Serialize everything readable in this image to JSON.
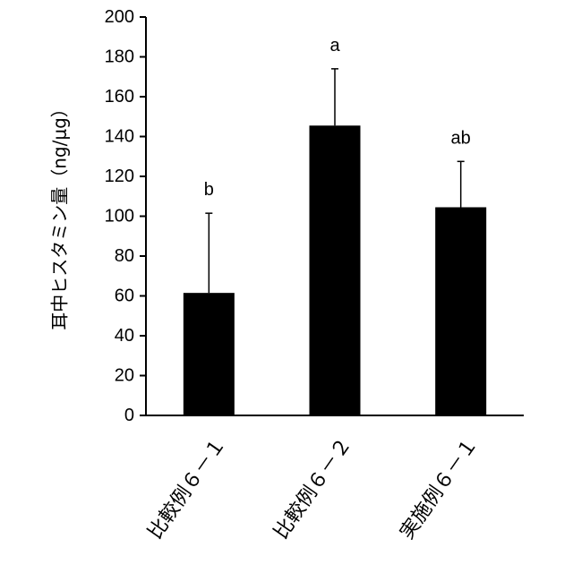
{
  "chart_data": {
    "type": "bar",
    "title": "",
    "xlabel": "",
    "ylabel": "耳中ヒスタミン量（ng/μg）",
    "ylim": [
      0,
      200
    ],
    "yticks": [
      0,
      20,
      40,
      60,
      80,
      100,
      120,
      140,
      160,
      180,
      200
    ],
    "categories": [
      "比較例６－１",
      "比較例６－２",
      "実施例６－１"
    ],
    "values": [
      61.5,
      145.5,
      104.5
    ],
    "error_upper": [
      101.5,
      174,
      127.5
    ],
    "significance_labels": [
      "b",
      "a",
      "ab"
    ],
    "bar_color": "#000000",
    "grid": false
  }
}
